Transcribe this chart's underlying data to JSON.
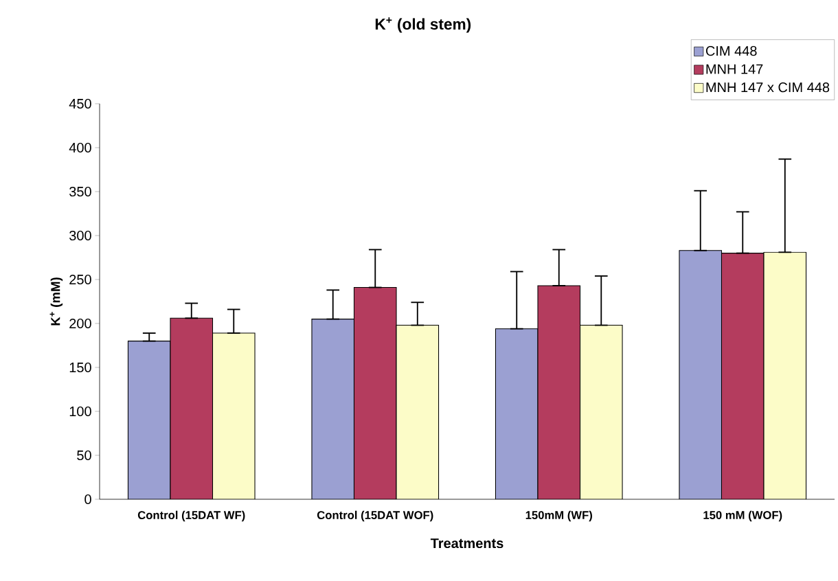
{
  "chart_data": {
    "type": "bar",
    "title": "K$^{+}$ (old stem)",
    "xlabel": "Treatments",
    "ylabel": "K$^{+}$ (mM)",
    "categories": [
      "Control (15DAT WF)",
      "Control (15DAT WOF)",
      "150mM (WF)",
      "150 mM (WOF)"
    ],
    "series": [
      {
        "name": "CIM 448",
        "color": "#9ba0d2",
        "values": [
          180,
          205,
          194,
          283
        ],
        "errors": [
          [
            180,
            189
          ],
          [
            205,
            238
          ],
          [
            194,
            259
          ],
          [
            283,
            351
          ]
        ]
      },
      {
        "name": "MNH 147",
        "color": "#b43c5e",
        "values": [
          206,
          241,
          243,
          280
        ],
        "errors": [
          [
            206,
            223
          ],
          [
            241,
            284
          ],
          [
            243,
            284
          ],
          [
            280,
            327
          ]
        ]
      },
      {
        "name": "MNH 147 x CIM 448",
        "color": "#fcfcc8",
        "values": [
          189,
          198,
          198,
          281
        ],
        "errors": [
          [
            189,
            216
          ],
          [
            198,
            224
          ],
          [
            198,
            254
          ],
          [
            281,
            387
          ]
        ]
      }
    ],
    "ylim": [
      0,
      450
    ],
    "yticks": [
      0,
      50,
      100,
      150,
      200,
      250,
      300,
      350,
      400,
      450
    ],
    "legend": "top right"
  }
}
